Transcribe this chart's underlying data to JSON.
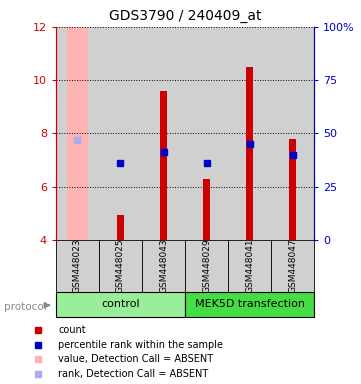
{
  "title": "GDS3790 / 240409_at",
  "samples": [
    "GSM448023",
    "GSM448025",
    "GSM448043",
    "GSM448029",
    "GSM448041",
    "GSM448047"
  ],
  "group_labels": [
    "control",
    "MEK5D transfection"
  ],
  "ylim_left": [
    4,
    12
  ],
  "ylim_right": [
    0,
    100
  ],
  "yticks_left": [
    4,
    6,
    8,
    10,
    12
  ],
  "yticks_right": [
    0,
    25,
    50,
    75,
    100
  ],
  "ytick_right_labels": [
    "0",
    "25",
    "50",
    "75",
    "100%"
  ],
  "bar_bottom": 4,
  "count_values": [
    null,
    4.95,
    9.6,
    6.3,
    10.5,
    7.8
  ],
  "percentile_values": [
    null,
    6.9,
    7.3,
    6.9,
    7.6,
    7.2
  ],
  "absent_value": 12.0,
  "absent_rank": 7.75,
  "absent_sample_idx": 0,
  "bar_color": "#cc0000",
  "percentile_color": "#0000cc",
  "absent_bar_color": "#ffb3b3",
  "absent_rank_color": "#aaaaee",
  "bg_color": "#d0d0d0",
  "group_color_control": "#99ee99",
  "group_color_mek": "#44dd44",
  "title_color": "#000000",
  "left_axis_color": "#cc0000",
  "right_axis_color": "#0000cc",
  "bar_width": 0.18,
  "absent_bar_width": 0.5,
  "legend_items": [
    [
      "#cc0000",
      "count"
    ],
    [
      "#0000cc",
      "percentile rank within the sample"
    ],
    [
      "#ffb3b3",
      "value, Detection Call = ABSENT"
    ],
    [
      "#aaaaee",
      "rank, Detection Call = ABSENT"
    ]
  ]
}
